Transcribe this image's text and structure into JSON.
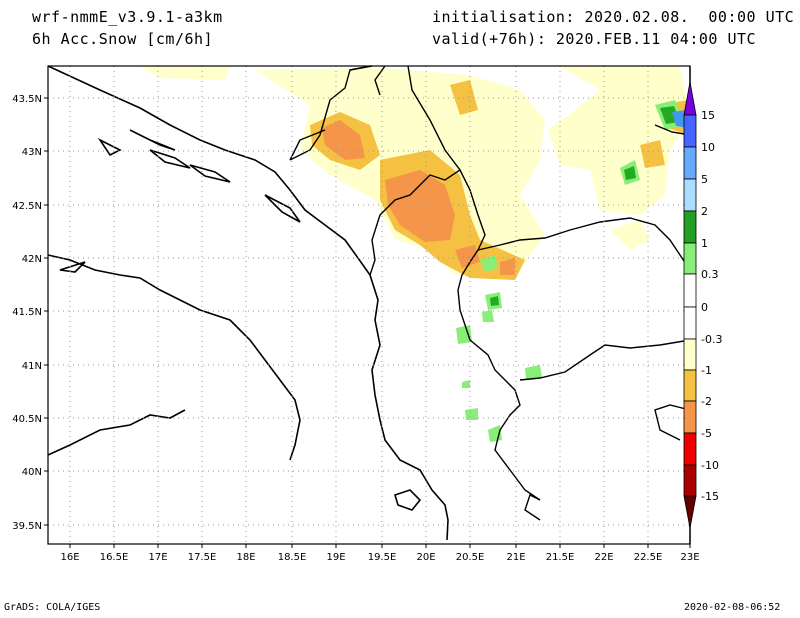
{
  "header": {
    "model": "wrf-nmmE_v3.9.1-a3km",
    "field": "6h Acc.Snow [cm/6h]",
    "init_label": "initialisation:",
    "init_value": "2020.02.08.  00:00 UTC",
    "valid_label": "valid(+76h):",
    "valid_value": "2020.FEB.11 04:00 UTC"
  },
  "map": {
    "lat_labels": [
      "43.5N",
      "43N",
      "42.5N",
      "42N",
      "41.5N",
      "41N",
      "40.5N",
      "40N",
      "39.5N"
    ],
    "lon_labels": [
      "16E",
      "16.5E",
      "17E",
      "17.5E",
      "18E",
      "18.5E",
      "19E",
      "19.5E",
      "20E",
      "20.5E",
      "21E",
      "21.5E",
      "22E",
      "22.5E",
      "23E"
    ],
    "snow_colors": {
      "lt1": "#ffffcc",
      "c1_2": "#f5c142",
      "c2_5": "#f4954a",
      "c0_3_1": "#88ee77",
      "c1_2g": "#22aa22",
      "c5_10": "#4499ee"
    }
  },
  "legend": {
    "labels": [
      "15",
      "10",
      "5",
      "2",
      "1",
      "0.3",
      "0",
      "-0.3",
      "-1",
      "-2",
      "-5",
      "-10",
      "-15"
    ],
    "colors": [
      "#7700dd",
      "#4466ff",
      "#66aaff",
      "#aaddff",
      "#22a022",
      "#006600",
      "#88ee77",
      "#ffffff",
      "#ffffff",
      "#ffffcc",
      "#f5c142",
      "#f4954a",
      "#dd0000",
      "#aa0000",
      "#660000"
    ]
  },
  "footer": {
    "left": "GrADS: COLA/IGES",
    "right": "2020-02-08-06:52"
  }
}
